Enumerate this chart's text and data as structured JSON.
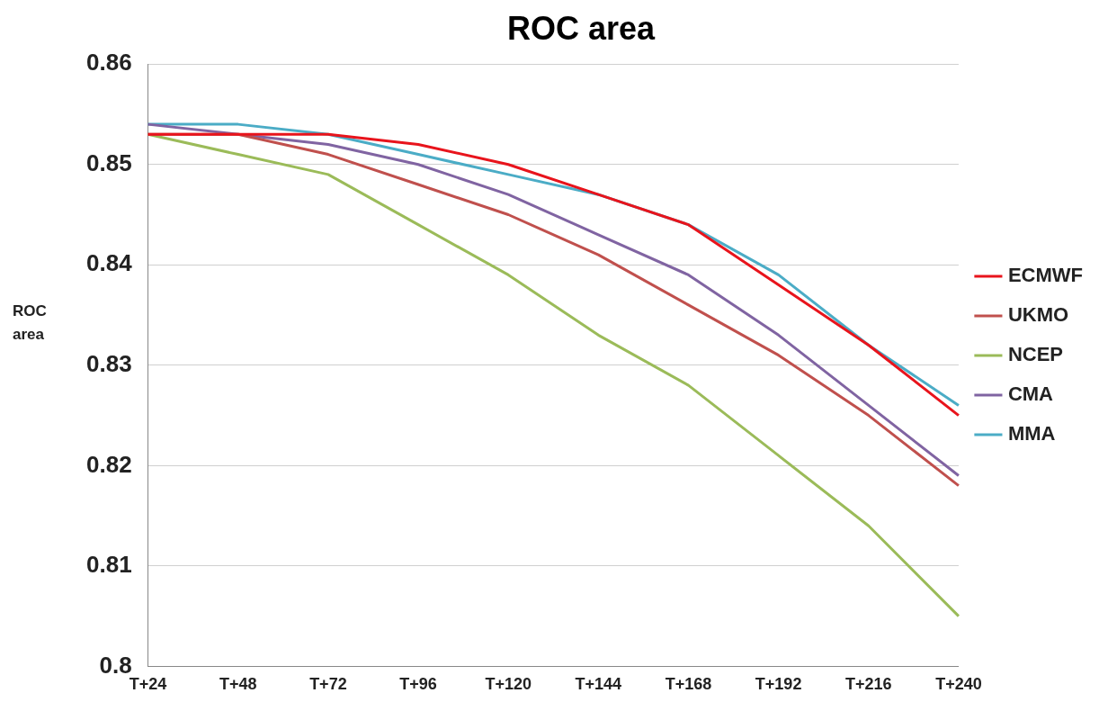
{
  "chart_data": {
    "type": "line",
    "title": "ROC area",
    "ylabel": "ROC area",
    "categories": [
      "T+24",
      "T+48",
      "T+72",
      "T+96",
      "T+120",
      "T+144",
      "T+168",
      "T+192",
      "T+216",
      "T+240"
    ],
    "series": [
      {
        "name": "ECMWF",
        "color": "#e8141c",
        "values": [
          0.853,
          0.853,
          0.853,
          0.852,
          0.85,
          0.847,
          0.844,
          0.838,
          0.832,
          0.825
        ]
      },
      {
        "name": "UKMO",
        "color": "#c0504d",
        "values": [
          0.853,
          0.853,
          0.851,
          0.848,
          0.845,
          0.841,
          0.836,
          0.831,
          0.825,
          0.818
        ]
      },
      {
        "name": "NCEP",
        "color": "#9bbb59",
        "values": [
          0.853,
          0.851,
          0.849,
          0.844,
          0.839,
          0.833,
          0.828,
          0.821,
          0.814,
          0.805
        ]
      },
      {
        "name": "CMA",
        "color": "#8064a2",
        "values": [
          0.854,
          0.853,
          0.852,
          0.85,
          0.847,
          0.843,
          0.839,
          0.833,
          0.826,
          0.819
        ]
      },
      {
        "name": "MMA",
        "color": "#4bacc6",
        "values": [
          0.854,
          0.854,
          0.853,
          0.851,
          0.849,
          0.847,
          0.844,
          0.839,
          0.832,
          0.826
        ]
      }
    ],
    "ylim": [
      0.8,
      0.86
    ],
    "yticks": [
      0.8,
      0.81,
      0.82,
      0.83,
      0.84,
      0.85,
      0.86
    ],
    "grid": "y",
    "legend": "right",
    "marker": "none",
    "line_style": "solid"
  }
}
